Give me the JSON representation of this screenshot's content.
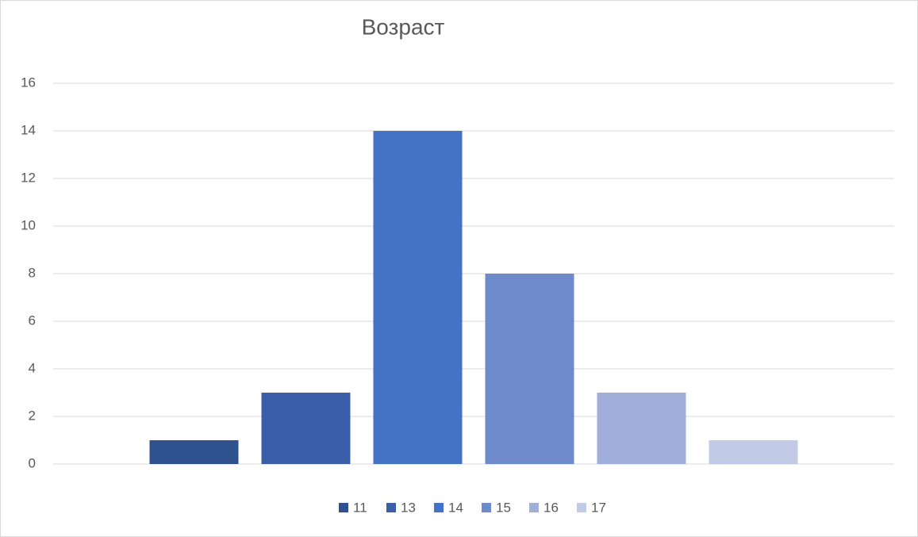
{
  "chart_data": {
    "type": "bar",
    "title": "Возраст",
    "series": [
      {
        "name": "11",
        "color": "#2f528f",
        "values": [
          1
        ]
      },
      {
        "name": "13",
        "color": "#3a5fa8",
        "values": [
          3
        ]
      },
      {
        "name": "14",
        "color": "#4472c4",
        "values": [
          14
        ]
      },
      {
        "name": "15",
        "color": "#6f8acb",
        "values": [
          8
        ]
      },
      {
        "name": "16",
        "color": "#a0afda",
        "values": [
          3
        ]
      },
      {
        "name": "17",
        "color": "#c1cbe6",
        "values": [
          1
        ]
      }
    ],
    "ylim": [
      0,
      16
    ],
    "yticks": [
      0,
      2,
      4,
      6,
      8,
      10,
      12,
      14,
      16
    ],
    "grid": true,
    "legend": "bottom"
  }
}
